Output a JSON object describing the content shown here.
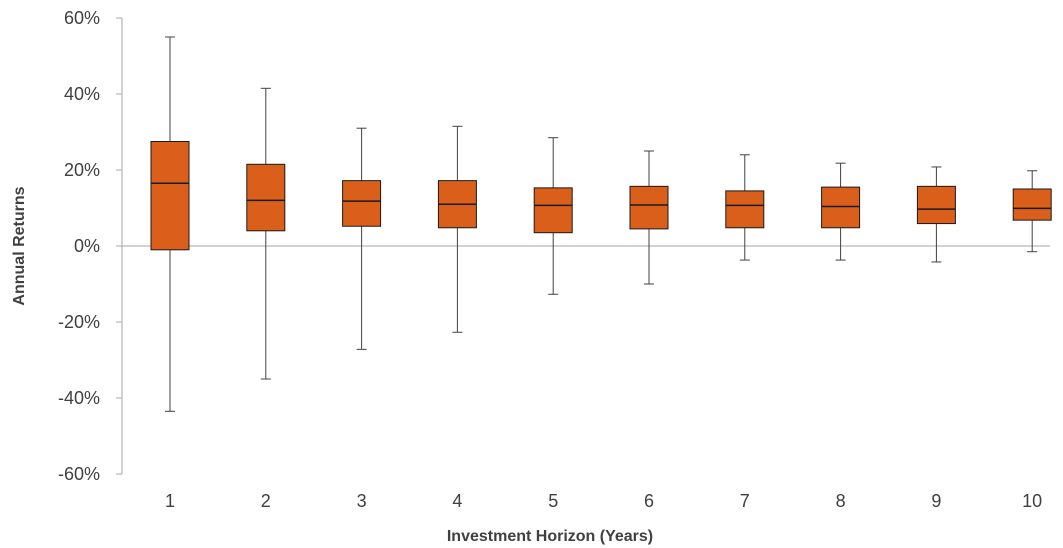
{
  "chart_data": {
    "type": "box",
    "xlabel": "Investment Horizon (Years)",
    "ylabel": "Annual Returns",
    "ylim": [
      -0.6,
      0.6
    ],
    "y_tick_values": [
      -0.6,
      -0.4,
      -0.2,
      0,
      0.2,
      0.4,
      0.6
    ],
    "y_tick_labels": [
      "-60%",
      "-40%",
      "-20%",
      "0%",
      "20%",
      "40%",
      "60%"
    ],
    "categories": [
      "1",
      "2",
      "3",
      "4",
      "5",
      "6",
      "7",
      "8",
      "9",
      "10"
    ],
    "box_color": "#d95f1b",
    "boxes": [
      {
        "min": -0.435,
        "q1": -0.01,
        "median": 0.165,
        "q3": 0.275,
        "max": 0.55
      },
      {
        "min": -0.35,
        "q1": 0.04,
        "median": 0.12,
        "q3": 0.215,
        "max": 0.415
      },
      {
        "min": -0.272,
        "q1": 0.052,
        "median": 0.118,
        "q3": 0.172,
        "max": 0.31
      },
      {
        "min": -0.227,
        "q1": 0.048,
        "median": 0.11,
        "q3": 0.172,
        "max": 0.315
      },
      {
        "min": -0.127,
        "q1": 0.035,
        "median": 0.107,
        "q3": 0.153,
        "max": 0.285
      },
      {
        "min": -0.1,
        "q1": 0.045,
        "median": 0.108,
        "q3": 0.157,
        "max": 0.25
      },
      {
        "min": -0.037,
        "q1": 0.048,
        "median": 0.107,
        "q3": 0.145,
        "max": 0.24
      },
      {
        "min": -0.037,
        "q1": 0.048,
        "median": 0.104,
        "q3": 0.155,
        "max": 0.218
      },
      {
        "min": -0.042,
        "q1": 0.059,
        "median": 0.097,
        "q3": 0.157,
        "max": 0.208
      },
      {
        "min": -0.015,
        "q1": 0.068,
        "median": 0.099,
        "q3": 0.15,
        "max": 0.198
      }
    ]
  }
}
